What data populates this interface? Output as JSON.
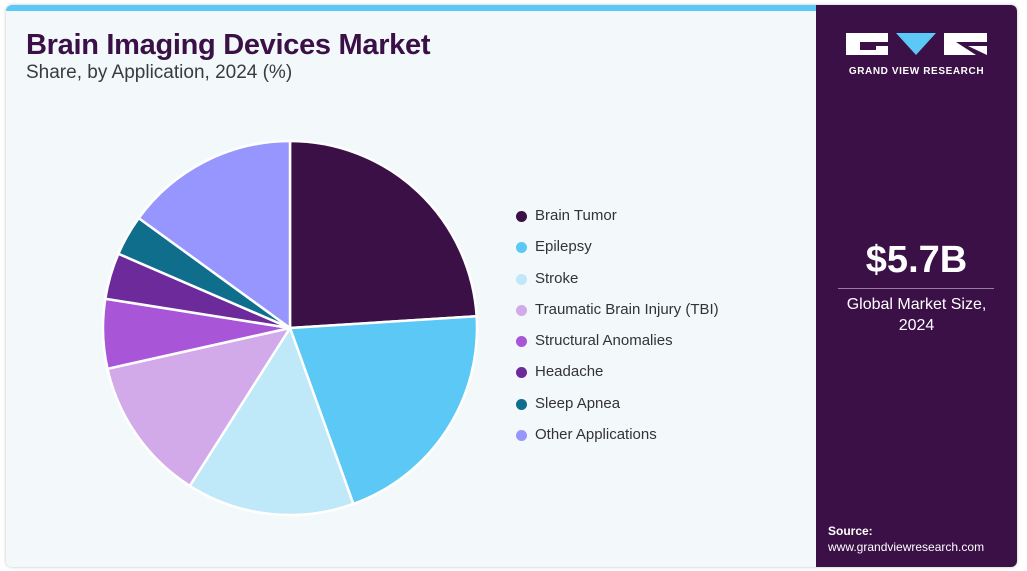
{
  "header": {
    "title": "Brain Imaging Devices Market",
    "subtitle": "Share, by Application, 2024 (%)"
  },
  "brand": {
    "name": "GRAND VIEW RESEARCH",
    "logo_icon": "gvr-logo-icon"
  },
  "market": {
    "value": "$5.7B",
    "label_line1": "Global Market Size,",
    "label_line2": "2024"
  },
  "source": {
    "label": "Source:",
    "url": "www.grandviewresearch.com"
  },
  "colors": {
    "accent_bar": "#5bc8f5",
    "sidebar_bg": "#3a1046",
    "title": "#3a1046"
  },
  "chart_data": {
    "type": "pie",
    "title": "Brain Imaging Devices Market",
    "subtitle": "Share, by Application, 2024 (%)",
    "legend_position": "right",
    "categories": [
      "Brain Tumor",
      "Epilepsy",
      "Stroke",
      "Traumatic Brain Injury (TBI)",
      "Structural Anomalies",
      "Headache",
      "Sleep Apnea",
      "Other Applications"
    ],
    "values": [
      24.0,
      20.5,
      14.5,
      12.5,
      6.0,
      4.0,
      3.5,
      15.0
    ],
    "colors": [
      "#3a1046",
      "#5bc8f5",
      "#bfe8f9",
      "#d2a9e9",
      "#a955d8",
      "#6d2a9a",
      "#0e6e8c",
      "#9796ff"
    ]
  }
}
